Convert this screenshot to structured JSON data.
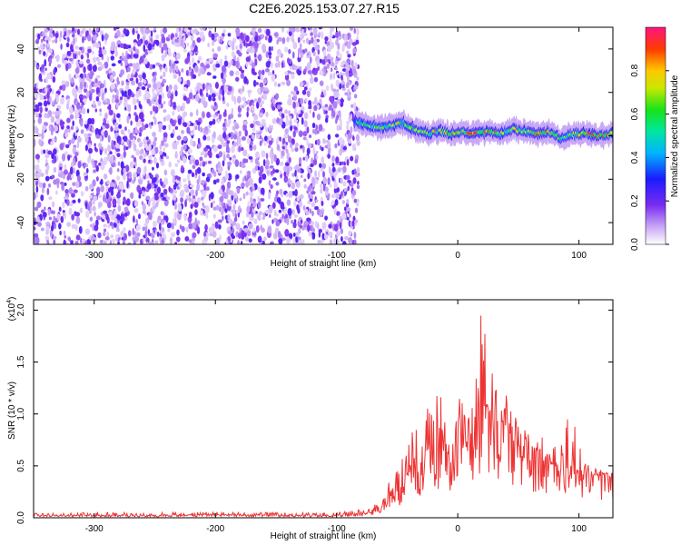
{
  "figure_title": "C2E6.2025.153.07.27.R15",
  "chart_data": [
    {
      "type": "heatmap",
      "title": "C2E6.2025.153.07.27.R15",
      "xlabel": "Height of straight line (km)",
      "ylabel": "Frequency (Hz)",
      "xlim": [
        -350,
        128
      ],
      "ylim": [
        -50,
        50
      ],
      "x_ticks": [
        -300,
        -200,
        -100,
        0,
        100
      ],
      "x_tick_labels": [
        "-300",
        "-200",
        "-100",
        "0",
        "100"
      ],
      "y_ticks": [
        -40,
        -20,
        0,
        20,
        40
      ],
      "y_tick_labels": [
        "-40",
        "-20",
        "0",
        "20",
        "40"
      ],
      "colorbar": {
        "label": "Normalized spectral amplitude",
        "range": [
          0,
          1
        ],
        "ticks": [
          0.0,
          0.2,
          0.4,
          0.6,
          0.8
        ],
        "tick_labels": [
          "0.0",
          "0.2",
          "0.4",
          "0.6",
          "0.8"
        ],
        "colormap": [
          "#ffffff",
          "#c9a8f5",
          "#7a2df0",
          "#1b1bff",
          "#00b4ff",
          "#00e6a0",
          "#18e418",
          "#c8e800",
          "#ffc800",
          "#ff3a00",
          "#ff1480"
        ]
      },
      "noise_region_x": [
        -350,
        -85
      ],
      "signal_track": {
        "x": [
          -85,
          -75,
          -60,
          -45,
          -35,
          -25,
          -15,
          -5,
          5,
          15,
          25,
          35,
          45,
          55,
          65,
          75,
          85,
          95,
          105,
          115,
          128
        ],
        "y": [
          7,
          5,
          4,
          6,
          3,
          1,
          2,
          1,
          2,
          1,
          2,
          1,
          3,
          2,
          1,
          2,
          -1,
          1,
          1,
          0,
          1
        ],
        "amplitude": [
          0.5,
          0.6,
          0.7,
          0.75,
          0.7,
          0.75,
          0.8,
          0.85,
          0.8,
          0.9,
          0.85,
          0.8,
          0.75,
          0.7,
          0.85,
          0.8,
          0.6,
          0.7,
          0.9,
          0.95,
          0.8
        ]
      }
    },
    {
      "type": "line",
      "xlabel": "Height of straight line (km)",
      "ylabel": "SNR (10 * v/v)",
      "y_multiplier_label": "(x10",
      "y_multiplier_exp": "4",
      "y_multiplier_close": ")",
      "xlim": [
        -350,
        128
      ],
      "ylim": [
        0,
        2.1
      ],
      "x_ticks": [
        -300,
        -200,
        -100,
        0,
        100
      ],
      "x_tick_labels": [
        "-300",
        "-200",
        "-100",
        "0",
        "100"
      ],
      "y_ticks": [
        0.0,
        0.5,
        1.0,
        1.5,
        2.0
      ],
      "y_tick_labels": [
        "0.0",
        "0.5",
        "1.0",
        "1.5",
        "2.0"
      ],
      "series": [
        {
          "color": "#ee3333",
          "x": [
            -350,
            -300,
            -250,
            -200,
            -150,
            -100,
            -70,
            -60,
            -50,
            -45,
            -40,
            -35,
            -30,
            -25,
            -20,
            -15,
            -10,
            -5,
            0,
            5,
            10,
            15,
            20,
            25,
            30,
            35,
            40,
            45,
            50,
            55,
            60,
            65,
            70,
            75,
            80,
            85,
            90,
            95,
            100,
            105,
            110,
            115,
            120,
            128
          ],
          "y": [
            0.02,
            0.02,
            0.02,
            0.03,
            0.02,
            0.02,
            0.05,
            0.12,
            0.25,
            0.3,
            0.4,
            0.5,
            0.45,
            0.55,
            0.6,
            0.7,
            0.6,
            0.65,
            0.8,
            0.75,
            0.85,
            0.9,
            1.1,
            1.0,
            0.95,
            0.9,
            0.85,
            0.75,
            0.7,
            0.6,
            0.55,
            0.6,
            0.55,
            0.5,
            0.5,
            0.45,
            0.45,
            0.5,
            0.4,
            0.45,
            0.42,
            0.4,
            0.4,
            0.38
          ],
          "peak_envelope": [
            0.05,
            0.05,
            0.05,
            0.06,
            0.05,
            0.05,
            0.1,
            0.3,
            0.5,
            0.6,
            0.75,
            0.9,
            0.8,
            1.2,
            1.1,
            1.25,
            1.0,
            1.05,
            1.2,
            1.1,
            1.25,
            1.7,
            2.05,
            1.65,
            1.5,
            1.3,
            1.2,
            1.1,
            0.9,
            0.85,
            0.8,
            0.85,
            0.8,
            0.7,
            0.75,
            0.85,
            0.95,
            1.0,
            0.75,
            0.55,
            0.5,
            0.48,
            0.45,
            0.42
          ]
        }
      ]
    }
  ]
}
